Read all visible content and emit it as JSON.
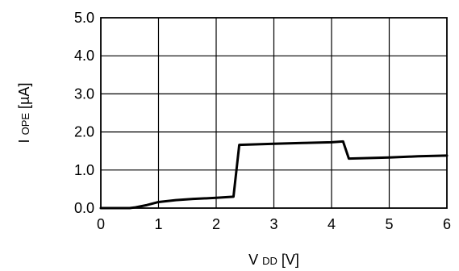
{
  "chart_data": {
    "type": "line",
    "title": "",
    "xlabel": {
      "main": "V",
      "sub": "DD",
      "unit": " [V]"
    },
    "ylabel": {
      "main": "I",
      "sub": "OPE",
      "unit": " [µA]"
    },
    "xlim": [
      0,
      6
    ],
    "ylim": [
      0,
      5
    ],
    "xticks": [
      0,
      1,
      2,
      3,
      4,
      5,
      6
    ],
    "yticks": [
      0,
      1,
      2,
      3,
      4,
      5
    ],
    "xtick_labels": [
      "0",
      "1",
      "2",
      "3",
      "4",
      "5",
      "6"
    ],
    "ytick_labels": [
      "0.0",
      "1.0",
      "2.0",
      "3.0",
      "4.0",
      "5.0"
    ],
    "grid": true,
    "series": [
      {
        "color": "#000000",
        "x": [
          0,
          0.5,
          0.6,
          0.8,
          1.0,
          1.3,
          1.6,
          2.0,
          2.3,
          2.4,
          3.0,
          3.5,
          4.0,
          4.2,
          4.3,
          5.0,
          5.5,
          6.0
        ],
        "y": [
          0,
          0,
          0.02,
          0.08,
          0.16,
          0.21,
          0.24,
          0.27,
          0.3,
          1.66,
          1.69,
          1.71,
          1.73,
          1.75,
          1.3,
          1.33,
          1.36,
          1.38
        ]
      }
    ]
  }
}
